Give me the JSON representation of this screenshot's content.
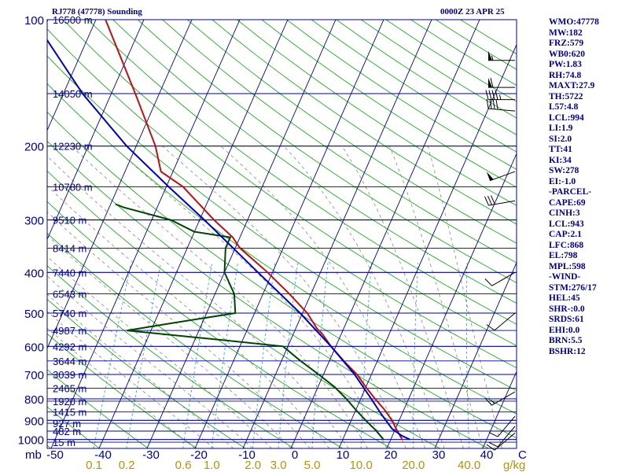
{
  "header": {
    "station_title": "RJ778 (47778) Sounding",
    "time_title": "0000Z 23 APR 25"
  },
  "colors": {
    "isobar": "#00008b",
    "isotherm": "#00008b",
    "dry_adiabat": "#22aa22",
    "moist_adiabat": "#888888",
    "mixing_ratio": "#33aacc",
    "temperature": "#bb1111",
    "dewpoint": "#004400",
    "parcel": "#0000bb",
    "wind_barb": "#000000"
  },
  "indices": [
    "WMO:47778",
    "MW:182",
    "FRZ:579",
    "WB0:620",
    "PW:1.83",
    "RH:74.8",
    "MAXT:27.9",
    "TH:5722",
    "L57:4.8",
    "LCL:994",
    "LI:1.9",
    "SI:2.0",
    "TT:41",
    "KI:34",
    "SW:278",
    "EI:-1.0",
    "-PARCEL-",
    "CAPE:69",
    "CINH:3",
    "LCL:943",
    "CAP:2.1",
    "LFC:868",
    "EL:798",
    "MPL:598",
    "-WIND-",
    "STM:276/17",
    "HEL:45",
    "SHR-:0.0",
    "SRDS:61",
    "EHI:0.0",
    "BRN:5.5",
    "BSHR:12"
  ],
  "chart_data": {
    "type": "line",
    "title": "",
    "pressure_levels": [
      1000,
      900,
      800,
      700,
      600,
      500,
      400,
      300,
      200,
      100
    ],
    "pressure_labels": [
      "1000",
      "900",
      "800",
      "700",
      "600",
      "500",
      "400",
      "300",
      "200",
      "100"
    ],
    "pressure_axis_label": "mb",
    "temperature_ticks": [
      -50,
      -40,
      -30,
      -20,
      -10,
      0,
      10,
      20,
      30,
      40
    ],
    "temperature_tick_labels": [
      "-50",
      "-40",
      "-30",
      "-20",
      "-10",
      "0",
      "10",
      "20",
      "30",
      "40"
    ],
    "temperature_unit_label": "C",
    "mixing_ratio_ticks": [
      0.1,
      0.2,
      0.6,
      1.0,
      2.0,
      3.0,
      5.0,
      10.0,
      20.0,
      40.0
    ],
    "mixing_ratio_labels": [
      "0.1",
      "0.2",
      "0.6",
      "1.0",
      "2.0",
      "3.0",
      "5.0",
      "10.0",
      "20.0",
      "40.0"
    ],
    "mixing_ratio_unit_label": "g/kg",
    "height_levels": [
      {
        "p": 1015,
        "label": "15 m"
      },
      {
        "p": 955,
        "label": "482 m"
      },
      {
        "p": 915,
        "label": "927 m"
      },
      {
        "p": 860,
        "label": "1415 m"
      },
      {
        "p": 810,
        "label": "1920 m"
      },
      {
        "p": 755,
        "label": "2465 m"
      },
      {
        "p": 700,
        "label": "3039 m"
      },
      {
        "p": 650,
        "label": "3644 m"
      },
      {
        "p": 600,
        "label": "4292 m"
      },
      {
        "p": 550,
        "label": "4987 m"
      },
      {
        "p": 500,
        "label": "5740 m"
      },
      {
        "p": 450,
        "label": "6543 m"
      },
      {
        "p": 400,
        "label": "7440 m"
      },
      {
        "p": 350,
        "label": "8414 m"
      },
      {
        "p": 300,
        "label": "9510 m"
      },
      {
        "p": 250,
        "label": "10780 m"
      },
      {
        "p": 200,
        "label": "12230 m"
      },
      {
        "p": 150,
        "label": "14050 m"
      },
      {
        "p": 100,
        "label": "16500 m"
      }
    ],
    "series": [
      {
        "key": "temperature",
        "points": [
          {
            "p": 1000,
            "t": 22.4
          },
          {
            "p": 950,
            "t": 20.4
          },
          {
            "p": 900,
            "t": 18.5
          },
          {
            "p": 850,
            "t": 16.0
          },
          {
            "p": 800,
            "t": 13.0
          },
          {
            "p": 750,
            "t": 10.0
          },
          {
            "p": 700,
            "t": 7.0
          },
          {
            "p": 650,
            "t": 3.0
          },
          {
            "p": 600,
            "t": -1.0
          },
          {
            "p": 560,
            "t": -4.0
          },
          {
            "p": 545,
            "t": -5.5
          },
          {
            "p": 500,
            "t": -9.0
          },
          {
            "p": 450,
            "t": -14.5
          },
          {
            "p": 400,
            "t": -21.0
          },
          {
            "p": 350,
            "t": -29.0
          },
          {
            "p": 330,
            "t": -31.5
          },
          {
            "p": 300,
            "t": -37.0
          },
          {
            "p": 250,
            "t": -46.5
          },
          {
            "p": 230,
            "t": -52.5
          },
          {
            "p": 200,
            "t": -56.0
          },
          {
            "p": 150,
            "t": -65.0
          },
          {
            "p": 100,
            "t": -78.0
          }
        ]
      },
      {
        "key": "dewpoint",
        "points": [
          {
            "p": 1000,
            "t": 18.5
          },
          {
            "p": 950,
            "t": 16.0
          },
          {
            "p": 900,
            "t": 13.0
          },
          {
            "p": 850,
            "t": 10.0
          },
          {
            "p": 800,
            "t": 7.0
          },
          {
            "p": 750,
            "t": 3.5
          },
          {
            "p": 700,
            "t": -1.0
          },
          {
            "p": 650,
            "t": -6.0
          },
          {
            "p": 600,
            "t": -11.0
          },
          {
            "p": 580,
            "t": -24.0
          },
          {
            "p": 550,
            "t": -45.0
          },
          {
            "p": 530,
            "t": -37.0
          },
          {
            "p": 500,
            "t": -24.0
          },
          {
            "p": 450,
            "t": -26.0
          },
          {
            "p": 400,
            "t": -30.0
          },
          {
            "p": 350,
            "t": -32.0
          },
          {
            "p": 330,
            "t": -32.0
          },
          {
            "p": 320,
            "t": -40.0
          },
          {
            "p": 300,
            "t": -46.0
          },
          {
            "p": 280,
            "t": -57.0
          },
          {
            "p": 275,
            "t": -59.0
          }
        ]
      },
      {
        "key": "parcel",
        "points": [
          {
            "p": 1000,
            "t": 24.0
          },
          {
            "p": 980,
            "t": 22.0
          },
          {
            "p": 943,
            "t": 19.3
          },
          {
            "p": 900,
            "t": 17.2
          },
          {
            "p": 868,
            "t": 15.6
          },
          {
            "p": 800,
            "t": 12.2
          },
          {
            "p": 700,
            "t": 6.5
          },
          {
            "p": 600,
            "t": -1.0
          },
          {
            "p": 500,
            "t": -10.5
          },
          {
            "p": 400,
            "t": -23.0
          },
          {
            "p": 300,
            "t": -39.0
          },
          {
            "p": 250,
            "t": -49.5
          },
          {
            "p": 200,
            "t": -62.0
          },
          {
            "p": 150,
            "t": -76.0
          },
          {
            "p": 110,
            "t": -89.0
          }
        ]
      }
    ],
    "wind_barbs": [
      {
        "p": 125,
        "dir": 270,
        "spd": 55
      },
      {
        "p": 145,
        "dir": 270,
        "spd": 60
      },
      {
        "p": 155,
        "dir": 270,
        "spd": 45
      },
      {
        "p": 165,
        "dir": 275,
        "spd": 40
      },
      {
        "p": 230,
        "dir": 250,
        "spd": 50
      },
      {
        "p": 270,
        "dir": 260,
        "spd": 30
      },
      {
        "p": 400,
        "dir": 240,
        "spd": 10
      },
      {
        "p": 500,
        "dir": 230,
        "spd": 10
      },
      {
        "p": 770,
        "dir": 240,
        "spd": 15
      },
      {
        "p": 880,
        "dir": 220,
        "spd": 10
      },
      {
        "p": 930,
        "dir": 220,
        "spd": 10
      },
      {
        "p": 965,
        "dir": 230,
        "spd": 10
      }
    ]
  }
}
